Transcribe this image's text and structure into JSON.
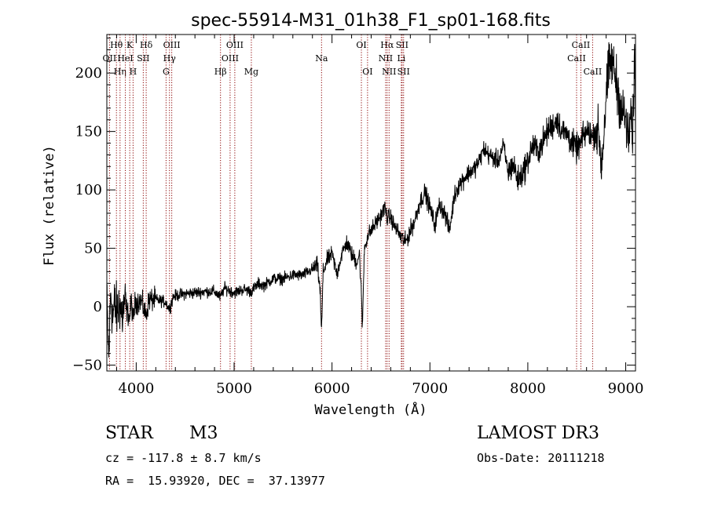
{
  "chart_data": {
    "type": "line",
    "title": "spec-55914-M31_01h38_F1_sp01-168.fits",
    "xlabel": "Wavelength (Å)",
    "ylabel": "Flux (relative)",
    "xlim": [
      3700,
      9100
    ],
    "ylim": [
      -55,
      233
    ],
    "xticks": [
      4000,
      5000,
      6000,
      7000,
      8000,
      9000
    ],
    "yticks": [
      -50,
      0,
      50,
      100,
      150,
      200
    ],
    "x_minor_step": 200,
    "y_minor_step": 10,
    "line_color": "#8b0000",
    "spectrum_color": "#000000",
    "spectrum_anchor_points": [
      [
        3700,
        5
      ],
      [
        3720,
        -45
      ],
      [
        3740,
        15
      ],
      [
        3760,
        -10
      ],
      [
        3780,
        2
      ],
      [
        3800,
        -5
      ],
      [
        3830,
        3
      ],
      [
        3860,
        -8
      ],
      [
        3880,
        4
      ],
      [
        3900,
        -2
      ],
      [
        3933,
        -10
      ],
      [
        3950,
        5
      ],
      [
        3968,
        -12
      ],
      [
        3990,
        4
      ],
      [
        4050,
        5
      ],
      [
        4101,
        -8
      ],
      [
        4130,
        6
      ],
      [
        4200,
        6
      ],
      [
        4300,
        4
      ],
      [
        4340,
        -2
      ],
      [
        4380,
        9
      ],
      [
        4500,
        11
      ],
      [
        4600,
        12
      ],
      [
        4700,
        13
      ],
      [
        4800,
        13
      ],
      [
        4861,
        8
      ],
      [
        4900,
        16
      ],
      [
        5000,
        12
      ],
      [
        5100,
        15
      ],
      [
        5176,
        13
      ],
      [
        5250,
        20
      ],
      [
        5300,
        18
      ],
      [
        5400,
        24
      ],
      [
        5500,
        24
      ],
      [
        5600,
        27
      ],
      [
        5700,
        27
      ],
      [
        5800,
        32
      ],
      [
        5850,
        36
      ],
      [
        5880,
        12
      ],
      [
        5892,
        -23
      ],
      [
        5910,
        30
      ],
      [
        5950,
        40
      ],
      [
        6000,
        45
      ],
      [
        6050,
        28
      ],
      [
        6100,
        45
      ],
      [
        6150,
        55
      ],
      [
        6200,
        45
      ],
      [
        6250,
        38
      ],
      [
        6280,
        45
      ],
      [
        6300,
        10
      ],
      [
        6310,
        -20
      ],
      [
        6330,
        50
      ],
      [
        6370,
        62
      ],
      [
        6400,
        65
      ],
      [
        6450,
        72
      ],
      [
        6500,
        78
      ],
      [
        6540,
        85
      ],
      [
        6563,
        76
      ],
      [
        6600,
        77
      ],
      [
        6630,
        70
      ],
      [
        6660,
        66
      ],
      [
        6700,
        60
      ],
      [
        6750,
        55
      ],
      [
        6800,
        65
      ],
      [
        6850,
        75
      ],
      [
        6900,
        90
      ],
      [
        6950,
        98
      ],
      [
        7000,
        85
      ],
      [
        7050,
        70
      ],
      [
        7100,
        88
      ],
      [
        7150,
        80
      ],
      [
        7200,
        65
      ],
      [
        7250,
        95
      ],
      [
        7300,
        105
      ],
      [
        7350,
        110
      ],
      [
        7400,
        115
      ],
      [
        7450,
        118
      ],
      [
        7500,
        124
      ],
      [
        7550,
        135
      ],
      [
        7600,
        130
      ],
      [
        7650,
        127
      ],
      [
        7700,
        125
      ],
      [
        7750,
        138
      ],
      [
        7800,
        115
      ],
      [
        7850,
        122
      ],
      [
        7900,
        108
      ],
      [
        7950,
        115
      ],
      [
        8000,
        125
      ],
      [
        8050,
        138
      ],
      [
        8100,
        133
      ],
      [
        8150,
        140
      ],
      [
        8200,
        150
      ],
      [
        8250,
        155
      ],
      [
        8300,
        160
      ],
      [
        8350,
        150
      ],
      [
        8400,
        148
      ],
      [
        8450,
        140
      ],
      [
        8498,
        135
      ],
      [
        8542,
        140
      ],
      [
        8580,
        148
      ],
      [
        8620,
        150
      ],
      [
        8662,
        145
      ],
      [
        8700,
        152
      ],
      [
        8730,
        145
      ],
      [
        8750,
        120
      ],
      [
        8770,
        140
      ],
      [
        8800,
        180
      ],
      [
        8830,
        205
      ],
      [
        8860,
        210
      ],
      [
        8900,
        195
      ],
      [
        8950,
        170
      ],
      [
        9000,
        160
      ],
      [
        9030,
        140
      ],
      [
        9050,
        170
      ],
      [
        9070,
        135
      ],
      [
        9090,
        220
      ],
      [
        9100,
        150
      ]
    ],
    "noise_amplitudes": [
      {
        "from": 3700,
        "to": 3900,
        "amp": 12
      },
      {
        "from": 3900,
        "to": 4200,
        "amp": 5
      },
      {
        "from": 4200,
        "to": 5800,
        "amp": 2.5
      },
      {
        "from": 5800,
        "to": 6700,
        "amp": 3.5
      },
      {
        "from": 6700,
        "to": 7800,
        "amp": 4
      },
      {
        "from": 7800,
        "to": 8700,
        "amp": 6
      },
      {
        "from": 8700,
        "to": 9100,
        "amp": 11
      }
    ],
    "line_ids": [
      {
        "label": "OII",
        "wave": 3727,
        "row": 1
      },
      {
        "label": "Hθ",
        "wave": 3798,
        "row": 0
      },
      {
        "label": "Hη",
        "wave": 3835,
        "row": 2
      },
      {
        "label": "HeI",
        "wave": 3889,
        "row": 1
      },
      {
        "label": "K",
        "wave": 3934,
        "row": 0
      },
      {
        "label": "SII",
        "wave": 4072,
        "row": 1
      },
      {
        "label": "H",
        "wave": 3968,
        "row": 2
      },
      {
        "label": "Hδ",
        "wave": 4102,
        "row": 0
      },
      {
        "label": "OIII",
        "wave": 4363,
        "row": 0
      },
      {
        "label": "Hγ",
        "wave": 4340,
        "row": 1
      },
      {
        "label": "G",
        "wave": 4305,
        "row": 2
      },
      {
        "label": "OIII",
        "wave": 4959,
        "row": 1
      },
      {
        "label": "OIII",
        "wave": 5007,
        "row": 0
      },
      {
        "label": "Hβ",
        "wave": 4861,
        "row": 2
      },
      {
        "label": "Mg",
        "wave": 5176,
        "row": 2
      },
      {
        "label": "Na",
        "wave": 5893,
        "row": 1
      },
      {
        "label": "OI",
        "wave": 6300,
        "row": 0
      },
      {
        "label": "OI",
        "wave": 6363,
        "row": 2
      },
      {
        "label": "Hα",
        "wave": 6563,
        "row": 0
      },
      {
        "label": "NII",
        "wave": 6548,
        "row": 1
      },
      {
        "label": "NII",
        "wave": 6583,
        "row": 2
      },
      {
        "label": "SII",
        "wave": 6716,
        "row": 0
      },
      {
        "label": "Li",
        "wave": 6708,
        "row": 1
      },
      {
        "label": "SII",
        "wave": 6731,
        "row": 2
      },
      {
        "label": "CaII",
        "wave": 8498,
        "row": 1
      },
      {
        "label": "CaII",
        "wave": 8542,
        "row": 0
      },
      {
        "label": "CaII",
        "wave": 8662,
        "row": 2
      }
    ]
  },
  "info": {
    "object_class": "STAR",
    "subclass": "M3",
    "survey": "LAMOST DR3",
    "redshift": "cz = -117.8 ± 8.7 km/s",
    "obs_date": "Obs-Date: 20111218",
    "coords": "RA =  15.93920, DEC =  37.13977"
  }
}
